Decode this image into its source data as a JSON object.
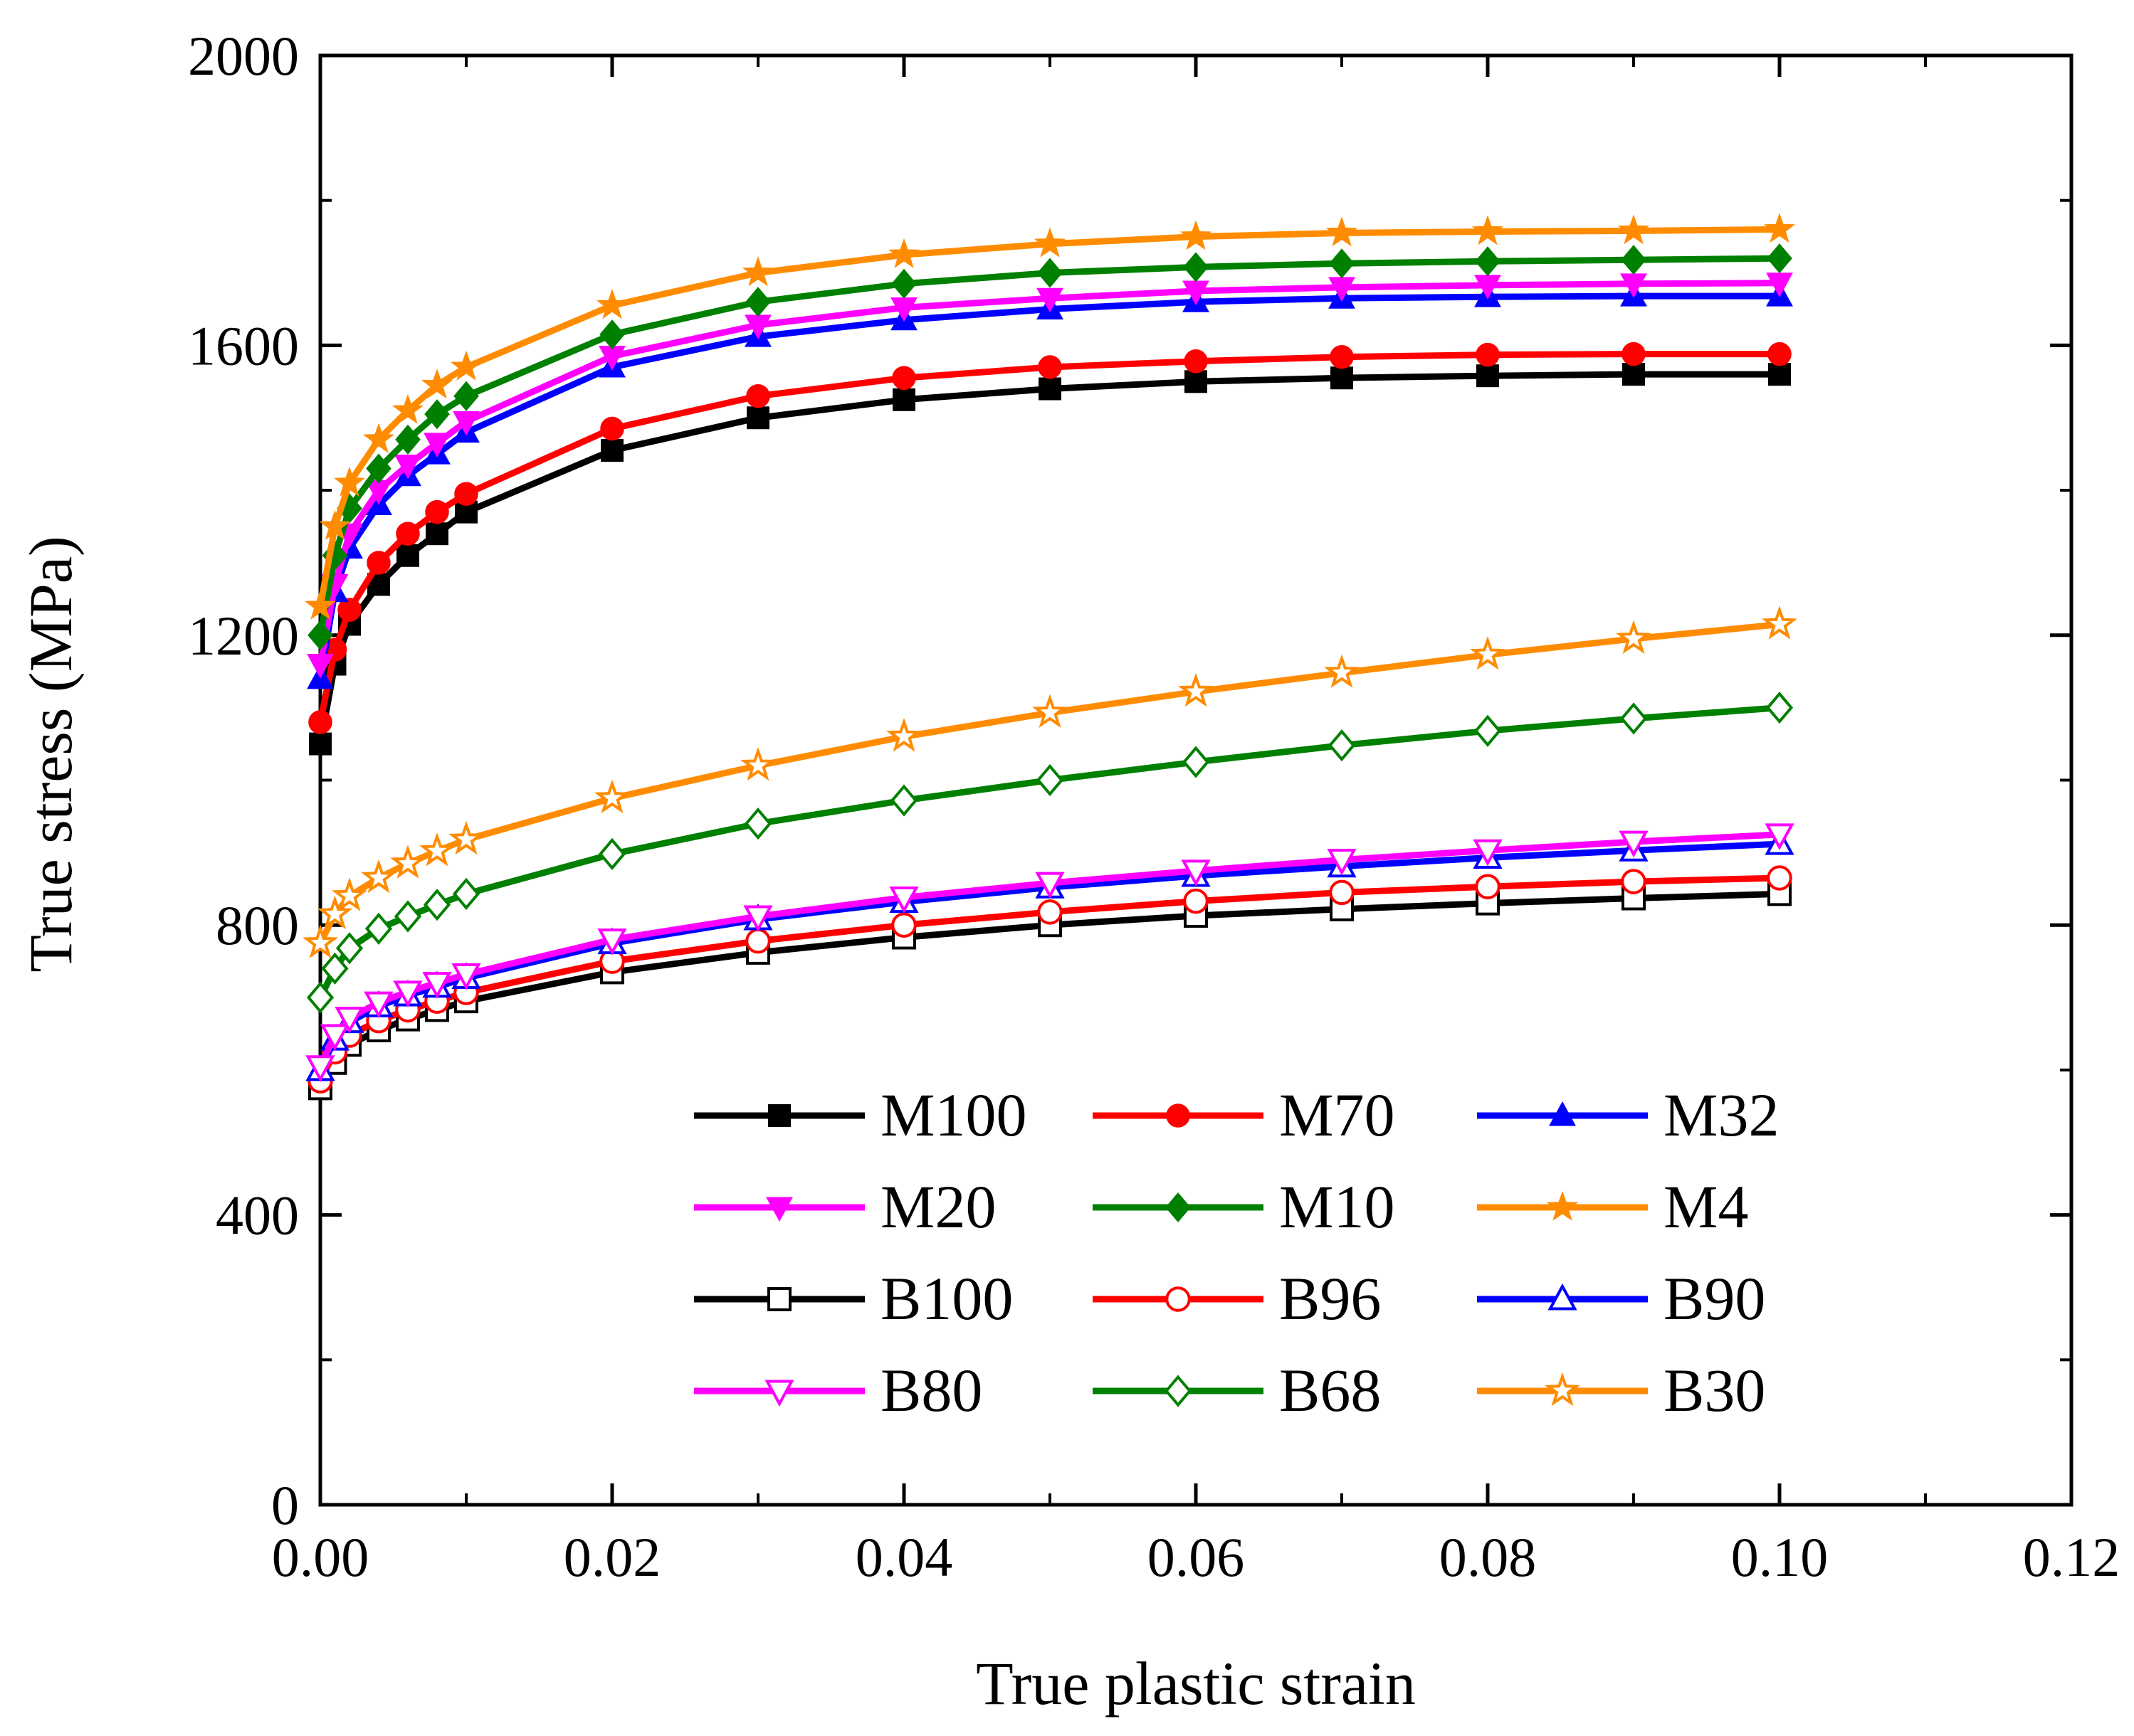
{
  "chart_data": {
    "type": "line",
    "title": "",
    "xlabel": "True plastic strain",
    "ylabel": "True stress (MPa)",
    "xlim": [
      0,
      0.12
    ],
    "ylim": [
      0,
      2000
    ],
    "x_ticks": [
      "0.00",
      "0.02",
      "0.04",
      "0.06",
      "0.08",
      "0.10",
      "0.12"
    ],
    "x_tick_values": [
      0,
      0.02,
      0.04,
      0.06,
      0.08,
      0.1,
      0.12
    ],
    "y_ticks": [
      "0",
      "400",
      "800",
      "1200",
      "1600",
      "2000"
    ],
    "y_tick_values": [
      0,
      400,
      800,
      1200,
      1600,
      2000
    ],
    "legend_position": "bottom-center",
    "x": [
      0,
      0.001,
      0.002,
      0.004,
      0.006,
      0.008,
      0.01,
      0.02,
      0.03,
      0.04,
      0.05,
      0.06,
      0.07,
      0.08,
      0.09,
      0.1
    ],
    "series": [
      {
        "name": "M100",
        "color": "#000000",
        "marker": "square",
        "filled": true,
        "values": [
          1050,
          1160,
          1215,
          1270,
          1310,
          1340,
          1370,
          1455,
          1500,
          1525,
          1540,
          1550,
          1555,
          1558,
          1560,
          1560
        ]
      },
      {
        "name": "M70",
        "color": "#ff0000",
        "marker": "circle",
        "filled": true,
        "values": [
          1080,
          1180,
          1235,
          1300,
          1340,
          1370,
          1395,
          1485,
          1530,
          1555,
          1570,
          1578,
          1584,
          1587,
          1588,
          1588
        ]
      },
      {
        "name": "M32",
        "color": "#0000ff",
        "marker": "triangle-up",
        "filled": true,
        "values": [
          1140,
          1260,
          1320,
          1380,
          1420,
          1450,
          1480,
          1570,
          1612,
          1635,
          1650,
          1660,
          1665,
          1667,
          1668,
          1668
        ]
      },
      {
        "name": "M20",
        "color": "#ff00ff",
        "marker": "triangle-down",
        "filled": true,
        "values": [
          1160,
          1270,
          1340,
          1400,
          1435,
          1465,
          1495,
          1585,
          1628,
          1652,
          1665,
          1675,
          1680,
          1683,
          1685,
          1686
        ]
      },
      {
        "name": "M10",
        "color": "#008000",
        "marker": "diamond",
        "filled": true,
        "values": [
          1200,
          1310,
          1375,
          1430,
          1470,
          1505,
          1530,
          1615,
          1660,
          1685,
          1700,
          1708,
          1713,
          1716,
          1718,
          1720
        ]
      },
      {
        "name": "M4",
        "color": "#ff8c00",
        "marker": "star",
        "filled": true,
        "values": [
          1240,
          1350,
          1410,
          1470,
          1510,
          1545,
          1570,
          1655,
          1700,
          1725,
          1740,
          1750,
          1755,
          1757,
          1758,
          1760
        ]
      },
      {
        "name": "B100",
        "color": "#000000",
        "marker": "square",
        "filled": false,
        "values": [
          575,
          610,
          635,
          655,
          670,
          683,
          695,
          735,
          762,
          783,
          800,
          813,
          822,
          830,
          837,
          843
        ]
      },
      {
        "name": "B96",
        "color": "#ff0000",
        "marker": "circle",
        "filled": false,
        "values": [
          585,
          625,
          648,
          668,
          683,
          695,
          707,
          750,
          778,
          800,
          818,
          833,
          845,
          853,
          860,
          865
        ]
      },
      {
        "name": "B90",
        "color": "#0000ff",
        "marker": "triangle-up",
        "filled": false,
        "values": [
          600,
          642,
          666,
          688,
          703,
          715,
          727,
          775,
          808,
          832,
          852,
          868,
          881,
          893,
          903,
          912
        ]
      },
      {
        "name": "B80",
        "color": "#ff00ff",
        "marker": "triangle-down",
        "filled": false,
        "values": [
          605,
          648,
          672,
          693,
          708,
          720,
          732,
          780,
          812,
          838,
          858,
          875,
          890,
          903,
          915,
          925
        ]
      },
      {
        "name": "B68",
        "color": "#008000",
        "marker": "diamond",
        "filled": false,
        "values": [
          700,
          740,
          768,
          795,
          812,
          828,
          843,
          898,
          940,
          972,
          1000,
          1025,
          1048,
          1068,
          1085,
          1100
        ]
      },
      {
        "name": "B30",
        "color": "#ff8c00",
        "marker": "star",
        "filled": false,
        "values": [
          775,
          815,
          840,
          865,
          885,
          902,
          918,
          975,
          1020,
          1060,
          1093,
          1122,
          1148,
          1173,
          1195,
          1215
        ]
      }
    ]
  }
}
